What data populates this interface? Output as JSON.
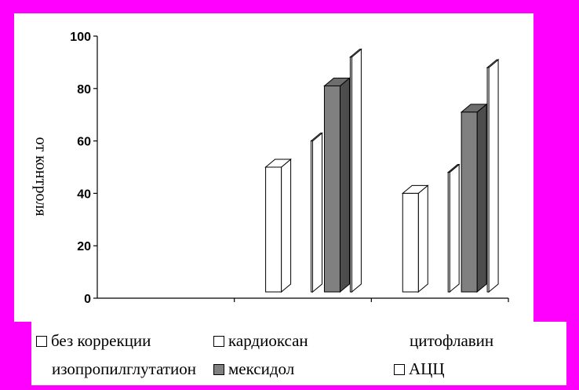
{
  "chart_data": {
    "type": "bar",
    "title": "",
    "ylabel": "от контроля",
    "xlabel": "",
    "ylim": [
      0,
      100
    ],
    "yticks": [
      0,
      20,
      40,
      60,
      80,
      100
    ],
    "categories": [
      "",
      "",
      ""
    ],
    "series": [
      {
        "name": "без коррекции",
        "color": "#ffffff",
        "values": [
          null,
          null,
          null
        ]
      },
      {
        "name": "кардиоксан",
        "color": "#ffffff",
        "values": [
          null,
          50,
          40
        ]
      },
      {
        "name": "цитофлавин",
        "color": "#ffffff",
        "values": [
          null,
          null,
          null
        ]
      },
      {
        "name": "изопропилглутатион",
        "color": "#ffffff",
        "values": [
          null,
          60,
          48
        ]
      },
      {
        "name": "мексидол",
        "color": "#808080",
        "values": [
          null,
          81,
          71
        ]
      },
      {
        "name": "АЦЦ",
        "color": "#ffffff",
        "values": [
          null,
          92,
          88
        ]
      }
    ]
  },
  "legend": [
    {
      "label": "без коррекции",
      "swatch": true,
      "color": "#ffffff"
    },
    {
      "label": "кардиоксан",
      "swatch": true,
      "color": "#ffffff"
    },
    {
      "label": "цитофлавин",
      "swatch": false,
      "color": "#ffffff"
    },
    {
      "label": "изопропилглутатион",
      "swatch": false,
      "color": "#ffffff"
    },
    {
      "label": "мексидол",
      "swatch": true,
      "color": "#808080"
    },
    {
      "label": "АЦЦ",
      "swatch": true,
      "color": "#ffffff"
    }
  ]
}
